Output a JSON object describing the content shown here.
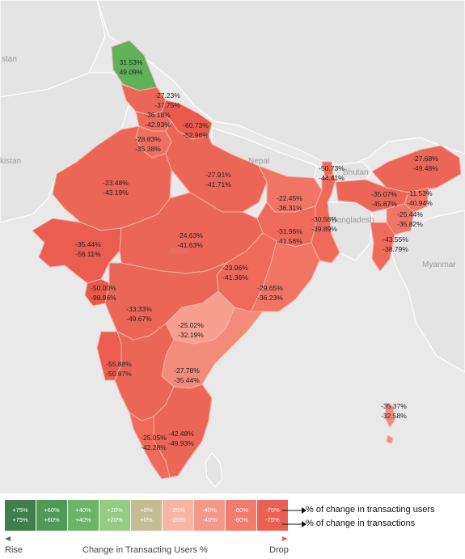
{
  "places": {
    "stan": "stan",
    "kistan": "kistan",
    "nepal": "Nepal",
    "bhutan": "Bhutan",
    "bangladesh": "Bangladesh",
    "myanmar": "Myanmar",
    "india": "India"
  },
  "regions": [
    {
      "name": "ladakh",
      "users": "31.53%",
      "transactions": "49.09%",
      "color": "#5fb25a"
    },
    {
      "name": "himachal-pradesh",
      "users": "-27.23%",
      "transactions": "-37.75%",
      "color": "#ec6657"
    },
    {
      "name": "punjab",
      "users": "-36.18%",
      "transactions": "-42.93%",
      "color": "#ef6a5b"
    },
    {
      "name": "uttarakhand",
      "users": "-60.73%",
      "transactions": "-52.96%",
      "color": "#e95a4d"
    },
    {
      "name": "haryana",
      "users": "-28.83%",
      "transactions": "-35.38%",
      "color": "#ef7060"
    },
    {
      "name": "rajasthan",
      "users": "-23.48%",
      "transactions": "-43.19%",
      "color": "#ec6657"
    },
    {
      "name": "uttar-pradesh",
      "users": "-27.91%",
      "transactions": "-41.71%",
      "color": "#ec6657"
    },
    {
      "name": "sikkim",
      "users": "-50.73%",
      "transactions": "-44.41%",
      "color": "#ef6a5b"
    },
    {
      "name": "arunachal-pradesh",
      "users": "-27.68%",
      "transactions": "-49.48%",
      "color": "#ec6657"
    },
    {
      "name": "bihar",
      "users": "-22.45%",
      "transactions": "-36.31%",
      "color": "#f07564"
    },
    {
      "name": "assam",
      "users": "-35.07%",
      "transactions": "-45.87%",
      "color": "#ec6657"
    },
    {
      "name": "nagaland",
      "users": "-11.53%",
      "transactions": "-40.94%",
      "color": "#f07564"
    },
    {
      "name": "west-bengal",
      "users": "-30.58%",
      "transactions": "-39.89%",
      "color": "#ef6a5b"
    },
    {
      "name": "jharkhand",
      "users": "-31.96%",
      "transactions": "-41.56%",
      "color": "#ef6a5b"
    },
    {
      "name": "manipur",
      "users": "-25.44%",
      "transactions": "-35.82%",
      "color": "#f07564"
    },
    {
      "name": "tripura-mizoram",
      "users": "-43.55%",
      "transactions": "-38.79%",
      "color": "#ef6a5b"
    },
    {
      "name": "gujarat",
      "users": "-35.44%",
      "transactions": "-56.11%",
      "color": "#ea5d50"
    },
    {
      "name": "madhya-pradesh",
      "users": "-24.63%",
      "transactions": "-41.63%",
      "color": "#ec6657"
    },
    {
      "name": "chhattisgarh",
      "users": "-23.96%",
      "transactions": "-41.36%",
      "color": "#ef6a5b"
    },
    {
      "name": "odisha",
      "users": "-29.65%",
      "transactions": "-36.23%",
      "color": "#f07564"
    },
    {
      "name": "dadra-daman-diu",
      "users": "-50.00%",
      "transactions": "-98.96%",
      "color": "#e8594c"
    },
    {
      "name": "maharashtra",
      "users": "-33.33%",
      "transactions": "-49.67%",
      "color": "#ec6657"
    },
    {
      "name": "telangana",
      "users": "-25.02%",
      "transactions": "-32.19%",
      "color": "#f7a08f"
    },
    {
      "name": "goa",
      "users": "-55.88%",
      "transactions": "-50.97%",
      "color": "#ea5d50"
    },
    {
      "name": "andhra-pradesh",
      "users": "-27.78%",
      "transactions": "-35.44%",
      "color": "#f38b7a"
    },
    {
      "name": "karnataka",
      "users": "",
      "transactions": "",
      "color": "#ec6657"
    },
    {
      "name": "tamil-nadu",
      "users": "-42.48%",
      "transactions": "-49.93%",
      "color": "#ec6657"
    },
    {
      "name": "kerala",
      "users": "-25.05%",
      "transactions": "-42.28%",
      "color": "#ef6a5b"
    },
    {
      "name": "andaman-nicobar",
      "users": "-35.37%",
      "transactions": "-32.58%",
      "color": "#f38b7a"
    }
  ],
  "legend": {
    "swatches": [
      {
        "users": "+75%",
        "transactions": "+75%",
        "color": "#3e7f4c",
        "text_color": "#ffffff"
      },
      {
        "users": "+60%",
        "transactions": "+60%",
        "color": "#4f9a57",
        "text_color": "#ffffff"
      },
      {
        "users": "+40%",
        "transactions": "+40%",
        "color": "#6bb366",
        "text_color": "#ffffff"
      },
      {
        "users": "+20%",
        "transactions": "+20%",
        "color": "#93cc82",
        "text_color": "#ffffff"
      },
      {
        "users": "+0%",
        "transactions": "+0%",
        "color": "#c4bd93",
        "text_color": "#ffffff"
      },
      {
        "users": "-20%",
        "transactions": "-20%",
        "color": "#f7b5a7",
        "text_color": "#ffffff"
      },
      {
        "users": "-40%",
        "transactions": "-40%",
        "color": "#f4998a",
        "text_color": "#ffffff"
      },
      {
        "users": "-60%",
        "transactions": "-60%",
        "color": "#ef7c6d",
        "text_color": "#ffffff"
      },
      {
        "users": "-75%",
        "transactions": "-75%",
        "color": "#ea6153",
        "text_color": "#ffffff"
      }
    ],
    "note_users": "% of change in transacting users",
    "note_transactions": "% of change in transactions",
    "rise_label": "Rise",
    "axis_title": "Change in Transacting Users %",
    "drop_label": "Drop"
  }
}
